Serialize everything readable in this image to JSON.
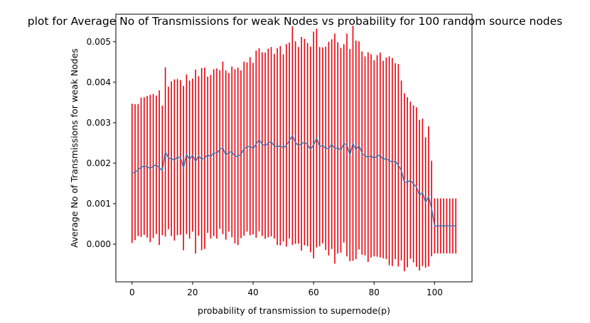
{
  "chart_data": {
    "type": "line",
    "title": "plot for Average No of Transmissions for weak Nodes vs probability for 100 random source nodes",
    "xlabel": "probability of transmission to supernode(p)",
    "ylabel": "Average No of Transmissions for weak Nodes",
    "xlim": [
      -5.35,
      112.35
    ],
    "ylim": [
      -0.00093,
      0.00568
    ],
    "x_ticks": [
      0,
      20,
      40,
      60,
      80,
      100
    ],
    "x_tick_labels": [
      "0",
      "20",
      "40",
      "60",
      "80",
      "100"
    ],
    "y_ticks": [
      0.0,
      0.001,
      0.002,
      0.003,
      0.004,
      0.005
    ],
    "y_tick_labels": [
      "0.000",
      "0.001",
      "0.002",
      "0.003",
      "0.004",
      "0.005"
    ],
    "grid": false,
    "legend": "none",
    "colors": {
      "mean_line": "#3b75af",
      "error_bars": "#e8000b"
    },
    "series": [
      {
        "x": [
          0,
          1,
          2,
          3,
          4,
          5,
          6,
          7,
          8,
          9,
          10,
          11,
          12,
          13,
          14,
          15,
          16,
          17,
          18,
          19,
          20,
          21,
          22,
          23,
          24,
          25,
          26,
          27,
          28,
          29,
          30,
          31,
          32,
          33,
          34,
          35,
          36,
          37,
          38,
          39,
          40,
          41,
          42,
          43,
          44,
          45,
          46,
          47,
          48,
          49,
          50,
          51,
          52,
          53,
          54,
          55,
          56,
          57,
          58,
          59,
          60,
          61,
          62,
          63,
          64,
          65,
          66,
          67,
          68,
          69,
          70,
          71,
          72,
          73,
          74,
          75,
          76,
          77,
          78,
          79,
          80,
          81,
          82,
          83,
          84,
          85,
          86,
          87,
          88,
          89,
          90,
          91,
          92,
          93,
          94,
          95,
          96,
          97,
          98,
          99,
          100,
          101,
          102,
          103,
          104,
          105,
          106,
          107
        ],
        "y": [
          0.00175,
          0.00178,
          0.00183,
          0.0019,
          0.00193,
          0.00191,
          0.00187,
          0.00193,
          0.00196,
          0.00189,
          0.00182,
          0.00228,
          0.00213,
          0.00211,
          0.00208,
          0.00215,
          0.00214,
          0.00188,
          0.00222,
          0.00209,
          0.0022,
          0.00204,
          0.00218,
          0.0021,
          0.00212,
          0.00221,
          0.00216,
          0.00226,
          0.00224,
          0.00234,
          0.00238,
          0.0022,
          0.00227,
          0.00228,
          0.00217,
          0.00217,
          0.00222,
          0.00236,
          0.0024,
          0.00242,
          0.00236,
          0.00247,
          0.00258,
          0.00247,
          0.00243,
          0.0025,
          0.00253,
          0.00242,
          0.00241,
          0.00243,
          0.00238,
          0.00244,
          0.00256,
          0.00268,
          0.00251,
          0.00244,
          0.00248,
          0.00252,
          0.00246,
          0.00234,
          0.00245,
          0.00262,
          0.00241,
          0.00244,
          0.00237,
          0.00236,
          0.00247,
          0.00236,
          0.00238,
          0.00232,
          0.00249,
          0.00245,
          0.0022,
          0.00249,
          0.00233,
          0.00244,
          0.00225,
          0.00218,
          0.00215,
          0.00218,
          0.00212,
          0.00218,
          0.0022,
          0.00209,
          0.00212,
          0.00206,
          0.00203,
          0.00205,
          0.00195,
          0.00182,
          0.00153,
          0.00153,
          0.00158,
          0.00149,
          0.00141,
          0.00121,
          0.00128,
          0.00103,
          0.00118,
          0.00088,
          0.00045,
          0.00045,
          0.00045,
          0.00045,
          0.00045,
          0.00045,
          0.00045,
          0.00045
        ],
        "yerr": [
          0.00172,
          0.00168,
          0.00163,
          0.00172,
          0.0017,
          0.00175,
          0.00182,
          0.00178,
          0.00171,
          0.00191,
          0.0016,
          0.00209,
          0.00176,
          0.00191,
          0.00199,
          0.00193,
          0.00191,
          0.00203,
          0.00197,
          0.00195,
          0.00189,
          0.00227,
          0.00197,
          0.00225,
          0.00224,
          0.00193,
          0.00202,
          0.00206,
          0.0021,
          0.00196,
          0.00213,
          0.00209,
          0.00196,
          0.00211,
          0.00215,
          0.00219,
          0.00207,
          0.00215,
          0.00209,
          0.0022,
          0.00212,
          0.00231,
          0.00226,
          0.00227,
          0.0023,
          0.00233,
          0.00234,
          0.00228,
          0.00243,
          0.00246,
          0.00231,
          0.0025,
          0.00242,
          0.0027,
          0.0025,
          0.00243,
          0.00264,
          0.00255,
          0.00251,
          0.00254,
          0.0028,
          0.0027,
          0.00246,
          0.00242,
          0.00251,
          0.00264,
          0.00259,
          0.00284,
          0.00261,
          0.00253,
          0.00245,
          0.00275,
          0.00262,
          0.0029,
          0.0027,
          0.00257,
          0.00251,
          0.00246,
          0.00259,
          0.00251,
          0.00242,
          0.00249,
          0.00253,
          0.00244,
          0.00249,
          0.00258,
          0.00257,
          0.00242,
          0.0025,
          0.00222,
          0.0022,
          0.0021,
          0.00194,
          0.00194,
          0.00197,
          0.00186,
          0.00182,
          0.00161,
          0.00173,
          0.00118,
          0.00068,
          0.00068,
          0.00068,
          0.00068,
          0.00068,
          0.00068,
          0.00068,
          0.00068
        ]
      }
    ]
  }
}
